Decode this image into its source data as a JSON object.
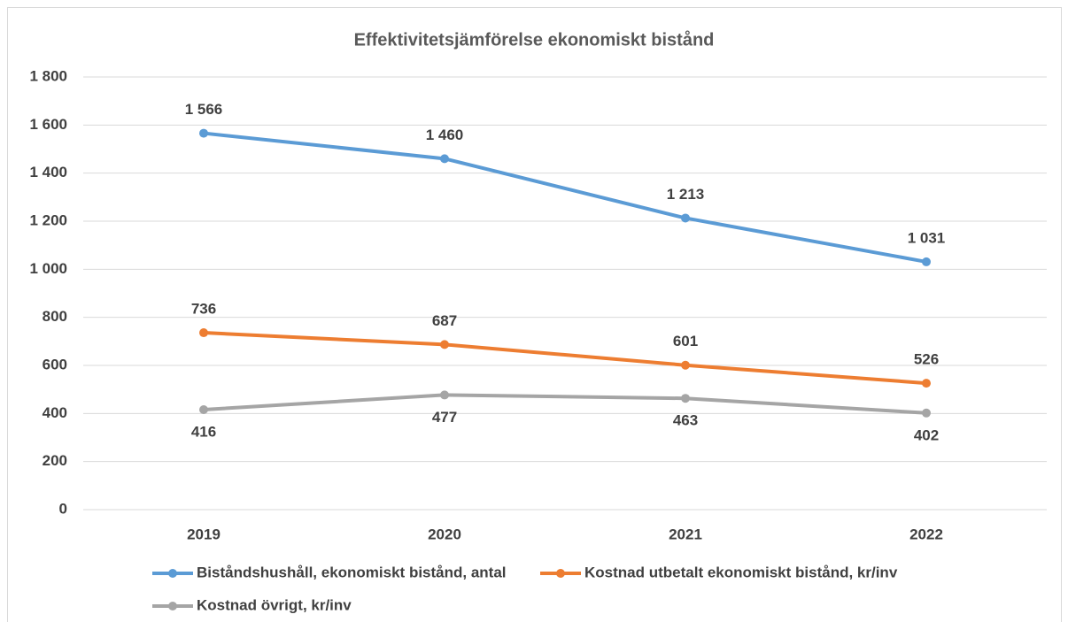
{
  "chart_data": {
    "type": "line",
    "title": "Effektivitetsjämförelse ekonomiskt bistånd",
    "categories": [
      "2019",
      "2020",
      "2021",
      "2022"
    ],
    "series": [
      {
        "name": "Biståndshushåll, ekonomiskt bistånd, antal",
        "color": "#5b9bd5",
        "label_position": "above",
        "values": [
          1566,
          1460,
          1213,
          1031
        ],
        "value_labels": [
          "1 566",
          "1 460",
          "1 213",
          "1 031"
        ]
      },
      {
        "name": "Kostnad utbetalt ekonomiskt bistånd, kr/inv",
        "color": "#ed7d31",
        "label_position": "above",
        "values": [
          736,
          687,
          601,
          526
        ]
      },
      {
        "name": "Kostnad övrigt, kr/inv",
        "color": "#a5a5a5",
        "label_position": "below",
        "values": [
          416,
          477,
          463,
          402
        ]
      }
    ],
    "ylim": [
      0,
      1800
    ],
    "yticks": [
      0,
      200,
      400,
      600,
      800,
      {
        "value": 1000,
        "label": "1 000"
      },
      {
        "value": 1200,
        "label": "1 200"
      },
      {
        "value": 1400,
        "label": "1 400"
      },
      {
        "value": 1600,
        "label": "1 600"
      },
      {
        "value": 1800,
        "label": "1 800"
      }
    ],
    "grid": true,
    "legend": "bottom"
  }
}
